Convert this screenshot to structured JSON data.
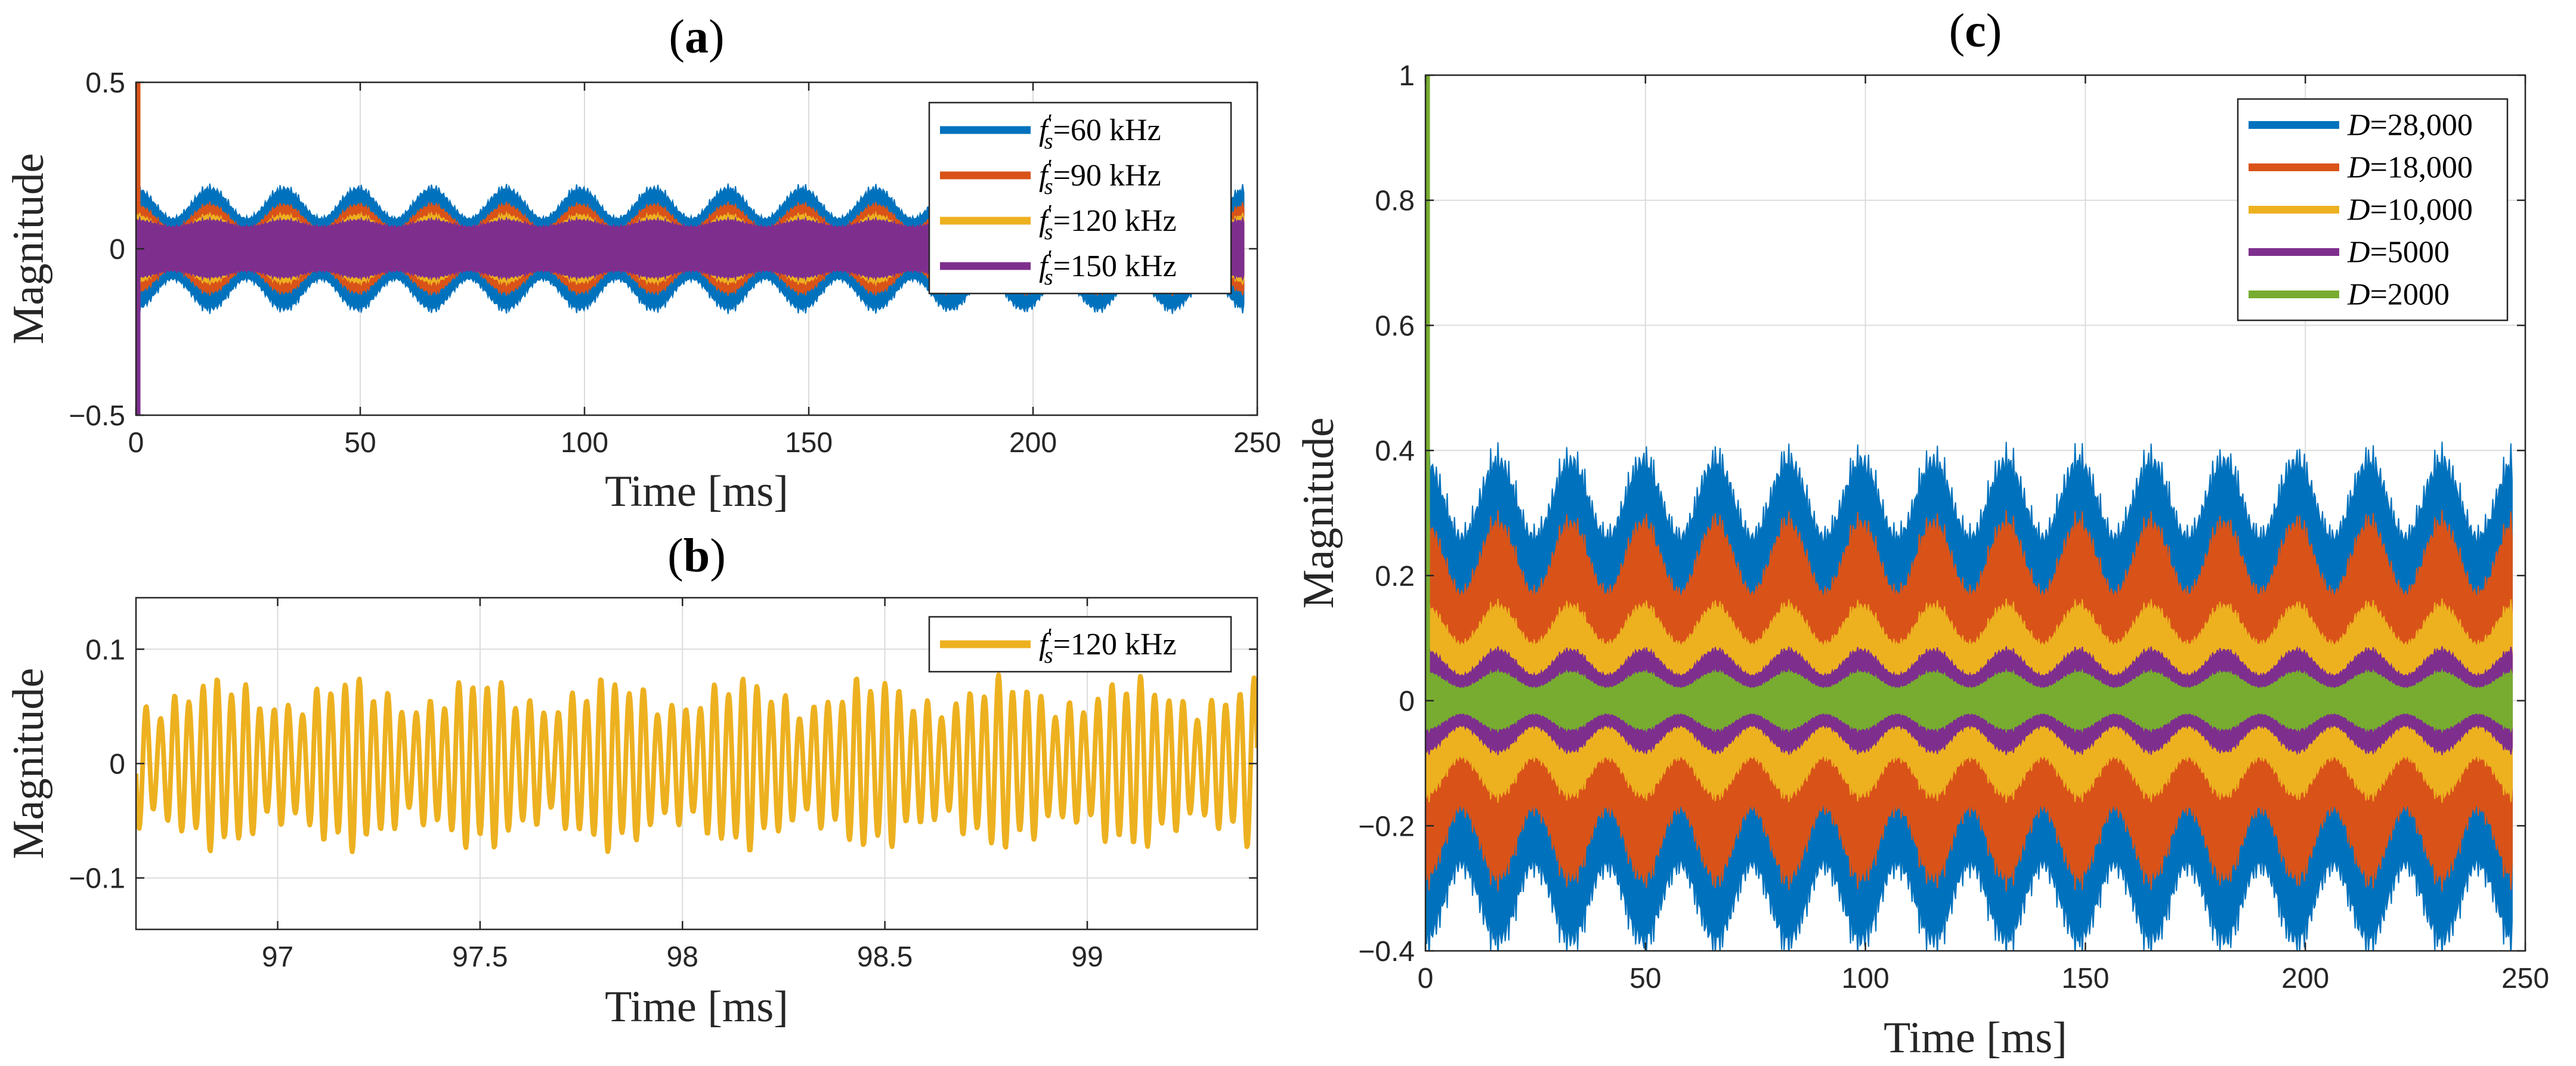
{
  "colors": {
    "blue": "#0072BD",
    "orange": "#D95319",
    "yellow": "#EDB120",
    "purple": "#7E2F8E",
    "green": "#77AC30"
  },
  "chart_data": [
    {
      "id": "a",
      "type": "line",
      "title": "(a)",
      "title_letter": "a",
      "xlabel": "Time [ms]",
      "ylabel": "Magnitude",
      "xlim": [
        0,
        250
      ],
      "ylim": [
        -0.5,
        0.5
      ],
      "xticks": [
        0,
        50,
        100,
        150,
        200,
        250
      ],
      "yticks": [
        -0.5,
        0,
        0.5
      ],
      "xtick_labels": [
        "0",
        "50",
        "100",
        "150",
        "200",
        "250"
      ],
      "ytick_labels": [
        "−0.5",
        "0",
        "0.5"
      ],
      "legend_position": "top-right",
      "series": [
        {
          "name": "f′s=60 kHz",
          "label_main": "f",
          "label_sub": "s",
          "label_rest": "=60 kHz",
          "color": "#0072BD",
          "x_end": 247,
          "center": 0,
          "amp_min": 0.09,
          "amp_max": 0.18,
          "period_ms": 16.5,
          "spike": 0
        },
        {
          "name": "f′s=90 kHz",
          "label_main": "f",
          "label_sub": "s",
          "label_rest": "=90 kHz",
          "color": "#D95319",
          "x_end": 247,
          "center": 0,
          "amp_min": 0.06,
          "amp_max": 0.13,
          "period_ms": 16.5,
          "spike": 0.5
        },
        {
          "name": "f′s=120 kHz",
          "label_main": "f",
          "label_sub": "s",
          "label_rest": "=120 kHz",
          "color": "#EDB120",
          "x_end": 247,
          "center": 0,
          "amp_min": 0.05,
          "amp_max": 0.1,
          "period_ms": 16.5,
          "spike": 0
        },
        {
          "name": "f′s=150 kHz",
          "label_main": "f",
          "label_sub": "s",
          "label_rest": "=150 kHz",
          "color": "#7E2F8E",
          "x_end": 247,
          "center": 0,
          "amp_min": 0.065,
          "amp_max": 0.085,
          "period_ms": 16.5,
          "spike": -0.5
        }
      ]
    },
    {
      "id": "b",
      "type": "line",
      "title": "(b)",
      "title_letter": "b",
      "xlabel": "Time [ms]",
      "ylabel": "Magnitude",
      "xlim": [
        96.65,
        99.42
      ],
      "ylim": [
        -0.145,
        0.145
      ],
      "xticks": [
        97,
        97.5,
        98,
        98.5,
        99
      ],
      "yticks": [
        -0.1,
        0,
        0.1
      ],
      "xtick_labels": [
        "97",
        "97.5",
        "98",
        "98.5",
        "99"
      ],
      "ytick_labels": [
        "−0.1",
        "0",
        "0.1"
      ],
      "legend_position": "top-right",
      "series": [
        {
          "name": "f′s=120 kHz",
          "label_main": "f",
          "label_sub": "s",
          "label_rest": "=120 kHz",
          "color": "#EDB120",
          "cycles_per_ms": 28.5,
          "amp_base": 0.058,
          "amp_mod": 0.012
        }
      ]
    },
    {
      "id": "c",
      "type": "line",
      "title": "(c)",
      "title_letter": "c",
      "xlabel": "Time [ms]",
      "ylabel": "Magnitude",
      "xlim": [
        0,
        250
      ],
      "ylim": [
        -0.4,
        1.0
      ],
      "xticks": [
        0,
        50,
        100,
        150,
        200,
        250
      ],
      "yticks": [
        -0.4,
        -0.2,
        0,
        0.2,
        0.4,
        0.6,
        0.8,
        1.0
      ],
      "xtick_labels": [
        "0",
        "50",
        "100",
        "150",
        "200",
        "250"
      ],
      "ytick_labels": [
        "−0.4",
        "−0.2",
        "0",
        "0.2",
        "0.4",
        "0.6",
        "0.8",
        "1"
      ],
      "legend_position": "top-right",
      "series": [
        {
          "name": "D=28,000",
          "label_main": "D",
          "label_rest": "=28,000",
          "color": "#0072BD",
          "x_end": 247,
          "center": 0,
          "amp_min": 0.26,
          "amp_max": 0.38,
          "period_ms": 16.5,
          "spike": 0
        },
        {
          "name": "D=18,000",
          "label_main": "D",
          "label_rest": "=18,000",
          "color": "#D95319",
          "x_end": 247,
          "center": 0,
          "amp_min": 0.17,
          "amp_max": 0.28,
          "period_ms": 16.5,
          "spike": 0
        },
        {
          "name": "D=10,000",
          "label_main": "D",
          "label_rest": "=10,000",
          "color": "#EDB120",
          "x_end": 247,
          "center": 0,
          "amp_min": 0.09,
          "amp_max": 0.15,
          "period_ms": 16.5,
          "spike": 0.5
        },
        {
          "name": "D=5000",
          "label_main": "D",
          "label_rest": "=5000",
          "color": "#7E2F8E",
          "x_end": 247,
          "center": 0,
          "amp_min": 0.04,
          "amp_max": 0.08,
          "period_ms": 16.5,
          "spike": 0.33
        },
        {
          "name": "D=2000",
          "label_main": "D",
          "label_rest": "=2000",
          "color": "#77AC30",
          "x_end": 247,
          "center": 0,
          "amp_min": 0.02,
          "amp_max": 0.045,
          "period_ms": 16.5,
          "spike": 1.0
        }
      ]
    }
  ]
}
